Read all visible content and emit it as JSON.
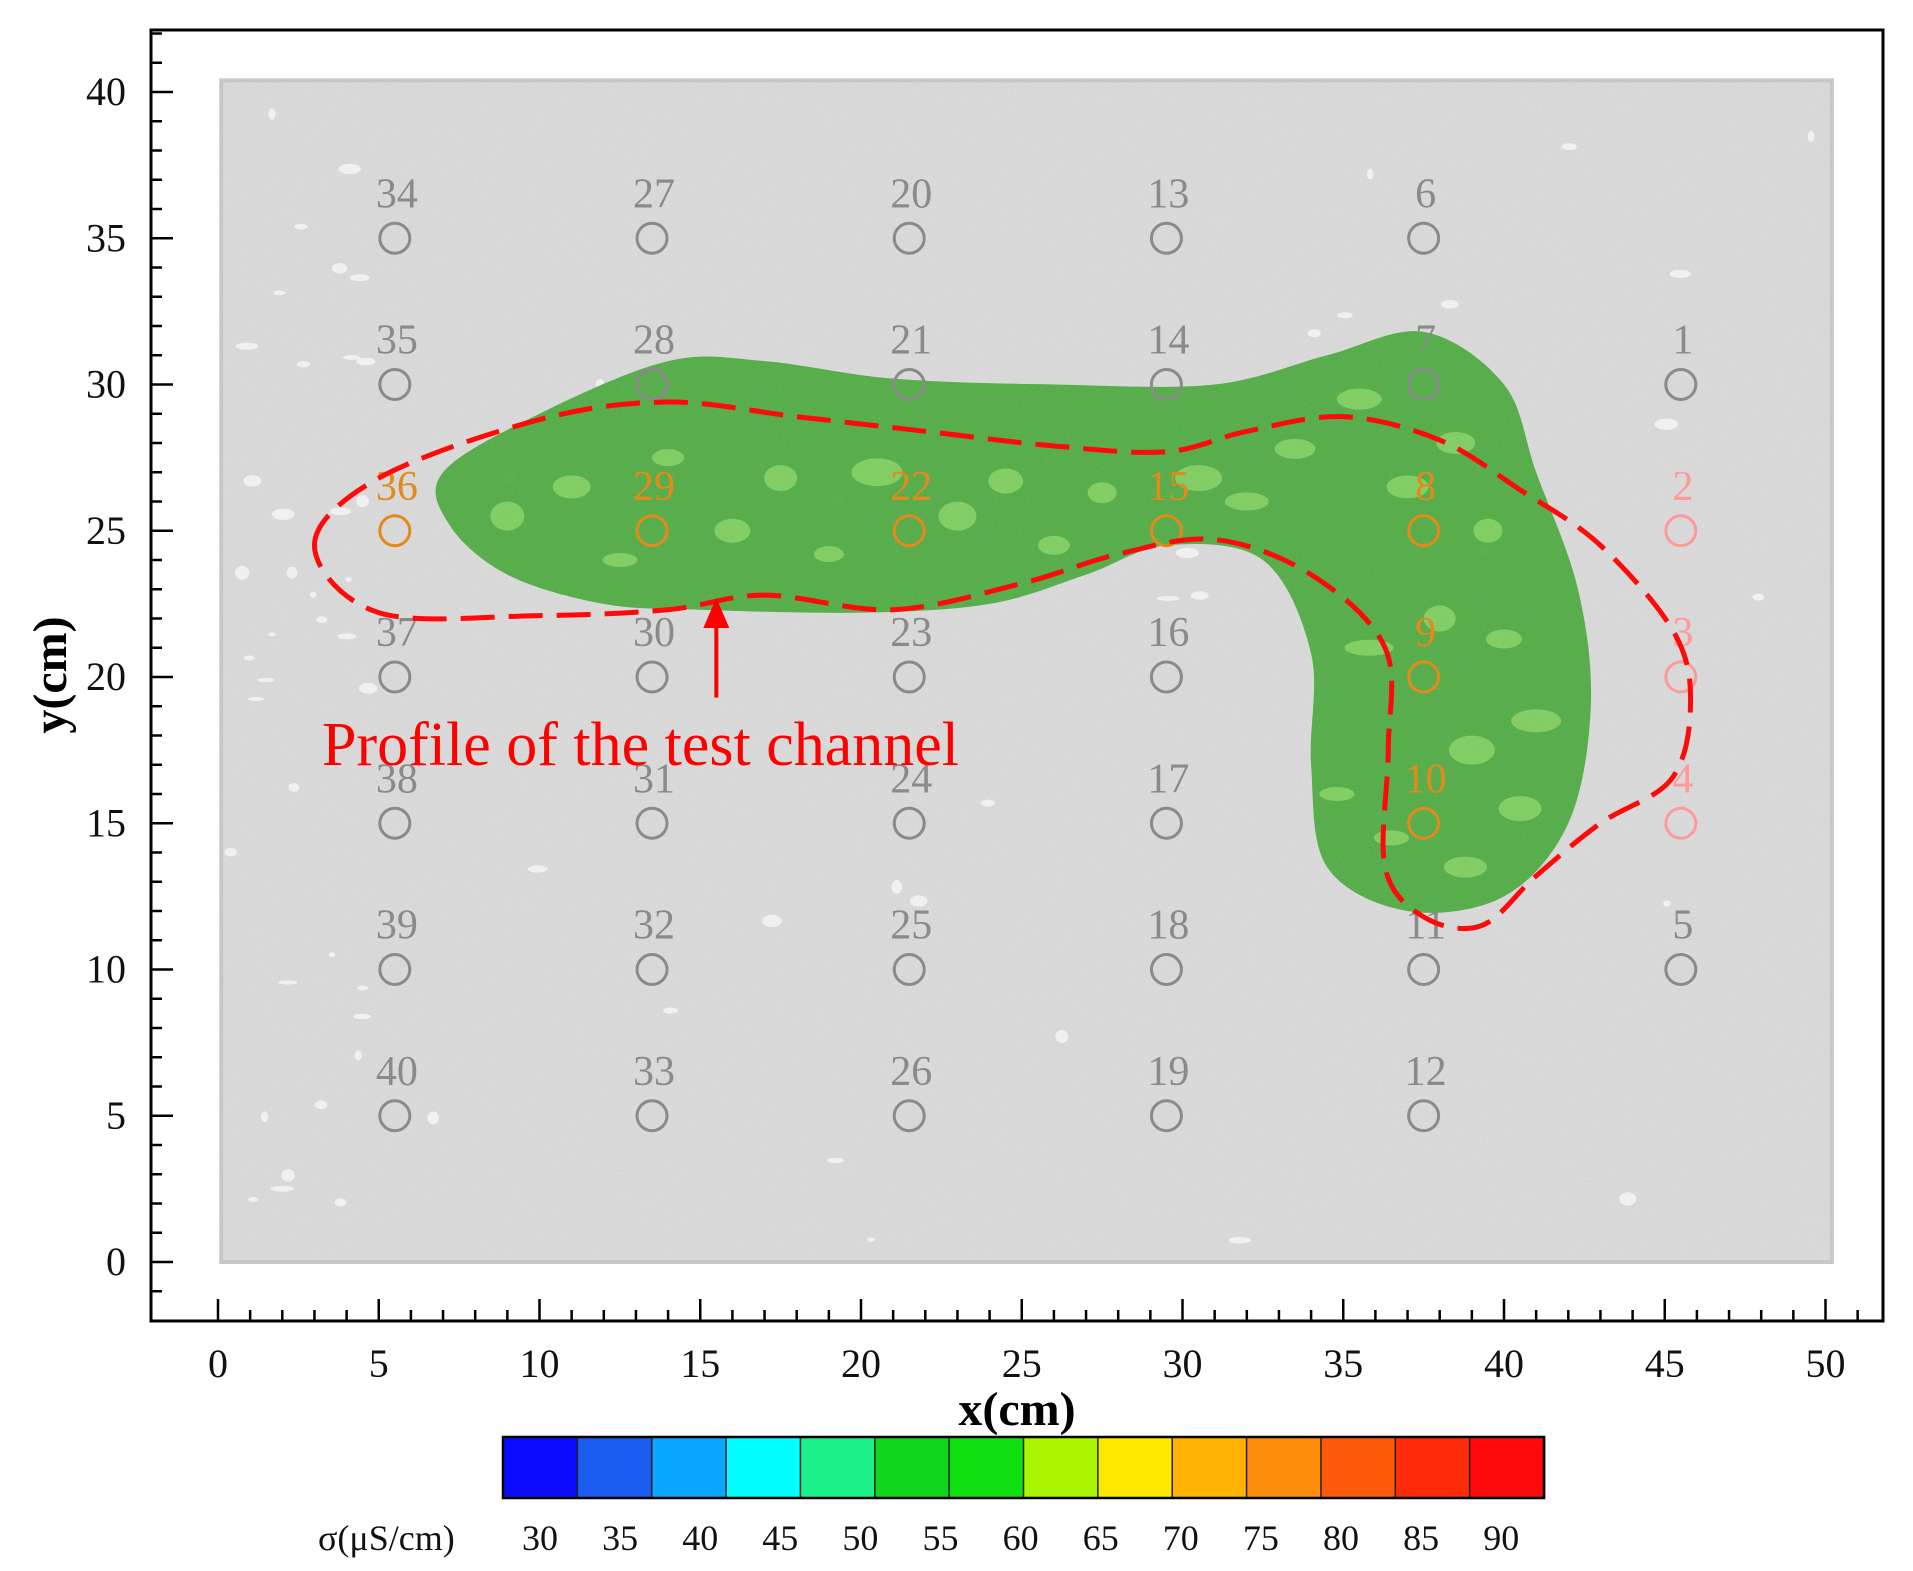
{
  "chart_data": {
    "type": "contour",
    "xlabel": "x(cm)",
    "ylabel": "y(cm)",
    "xlim": [
      0,
      50
    ],
    "ylim": [
      0,
      40
    ],
    "x_ticks": [
      "0",
      "5",
      "10",
      "15",
      "20",
      "25",
      "30",
      "35",
      "40",
      "45",
      "50"
    ],
    "y_ticks": [
      "0",
      "5",
      "10",
      "15",
      "20",
      "25",
      "30",
      "35",
      "40"
    ],
    "background": "photo of soil sample",
    "measurement_points": [
      {
        "id": "1",
        "x": 45.5,
        "y": 30
      },
      {
        "id": "2",
        "x": 45.5,
        "y": 25
      },
      {
        "id": "3",
        "x": 45.5,
        "y": 20
      },
      {
        "id": "4",
        "x": 45.5,
        "y": 15
      },
      {
        "id": "5",
        "x": 45.5,
        "y": 10
      },
      {
        "id": "6",
        "x": 37.5,
        "y": 35
      },
      {
        "id": "7",
        "x": 37.5,
        "y": 30
      },
      {
        "id": "8",
        "x": 37.5,
        "y": 25
      },
      {
        "id": "9",
        "x": 37.5,
        "y": 20
      },
      {
        "id": "10",
        "x": 37.5,
        "y": 15
      },
      {
        "id": "11",
        "x": 37.5,
        "y": 10
      },
      {
        "id": "12",
        "x": 37.5,
        "y": 5
      },
      {
        "id": "13",
        "x": 29.5,
        "y": 35
      },
      {
        "id": "14",
        "x": 29.5,
        "y": 30
      },
      {
        "id": "15",
        "x": 29.5,
        "y": 25
      },
      {
        "id": "16",
        "x": 29.5,
        "y": 20
      },
      {
        "id": "17",
        "x": 29.5,
        "y": 15
      },
      {
        "id": "18",
        "x": 29.5,
        "y": 10
      },
      {
        "id": "19",
        "x": 29.5,
        "y": 5
      },
      {
        "id": "20",
        "x": 21.5,
        "y": 35
      },
      {
        "id": "21",
        "x": 21.5,
        "y": 30
      },
      {
        "id": "22",
        "x": 21.5,
        "y": 25
      },
      {
        "id": "23",
        "x": 21.5,
        "y": 20
      },
      {
        "id": "24",
        "x": 21.5,
        "y": 15
      },
      {
        "id": "25",
        "x": 21.5,
        "y": 10
      },
      {
        "id": "26",
        "x": 21.5,
        "y": 5
      },
      {
        "id": "27",
        "x": 13.5,
        "y": 35
      },
      {
        "id": "28",
        "x": 13.5,
        "y": 30
      },
      {
        "id": "29",
        "x": 13.5,
        "y": 25
      },
      {
        "id": "30",
        "x": 13.5,
        "y": 20
      },
      {
        "id": "31",
        "x": 13.5,
        "y": 15
      },
      {
        "id": "32",
        "x": 13.5,
        "y": 10
      },
      {
        "id": "33",
        "x": 13.5,
        "y": 5
      },
      {
        "id": "34",
        "x": 5.5,
        "y": 35
      },
      {
        "id": "35",
        "x": 5.5,
        "y": 30
      },
      {
        "id": "36",
        "x": 5.5,
        "y": 25
      },
      {
        "id": "37",
        "x": 5.5,
        "y": 20
      },
      {
        "id": "38",
        "x": 5.5,
        "y": 15
      },
      {
        "id": "39",
        "x": 5.5,
        "y": 10
      },
      {
        "id": "40",
        "x": 5.5,
        "y": 5
      }
    ],
    "highlighted_points": [
      "2",
      "3",
      "4",
      "8",
      "9",
      "10",
      "15",
      "22",
      "29",
      "36"
    ],
    "conductivity_region": {
      "value_range_uS_cm": [
        50,
        65
      ],
      "color": "#3fa830",
      "outline": [
        [
          7,
          27
        ],
        [
          10,
          29
        ],
        [
          14,
          30.8
        ],
        [
          17,
          30.8
        ],
        [
          21,
          30.2
        ],
        [
          26,
          30
        ],
        [
          31,
          30
        ],
        [
          34.5,
          31
        ],
        [
          37.5,
          31.8
        ],
        [
          40,
          30
        ],
        [
          41,
          27
        ],
        [
          42.3,
          23
        ],
        [
          42.7,
          19
        ],
        [
          42,
          15
        ],
        [
          40,
          12.5
        ],
        [
          37,
          12
        ],
        [
          34.5,
          13.5
        ],
        [
          34,
          17
        ],
        [
          34,
          20.8
        ],
        [
          32.5,
          24
        ],
        [
          29.5,
          24.5
        ],
        [
          27,
          23.5
        ],
        [
          24,
          22.5
        ],
        [
          20,
          22.2
        ],
        [
          15,
          22.3
        ],
        [
          12,
          22.5
        ],
        [
          9,
          23.5
        ],
        [
          7.2,
          25.2
        ]
      ]
    },
    "annotation": {
      "text": "Profile of the test channel",
      "color": "#ff0000",
      "outline": [
        [
          3,
          24.5
        ],
        [
          5,
          26.8
        ],
        [
          10,
          28.8
        ],
        [
          14,
          29.4
        ],
        [
          18,
          28.9
        ],
        [
          22,
          28.4
        ],
        [
          26,
          27.9
        ],
        [
          29.5,
          27.7
        ],
        [
          32,
          28.4
        ],
        [
          35,
          28.9
        ],
        [
          38,
          28.1
        ],
        [
          40.5,
          26.4
        ],
        [
          43,
          24.5
        ],
        [
          45.3,
          21.5
        ],
        [
          45.8,
          19
        ],
        [
          45.2,
          16.5
        ],
        [
          43,
          15
        ],
        [
          41,
          13.2
        ],
        [
          39.3,
          11.5
        ],
        [
          37.5,
          11.8
        ],
        [
          36.3,
          13.5
        ],
        [
          36.4,
          17.5
        ],
        [
          36.3,
          21
        ],
        [
          34,
          23.5
        ],
        [
          31,
          24.7
        ],
        [
          28,
          24.2
        ],
        [
          25,
          23.2
        ],
        [
          21,
          22.3
        ],
        [
          17,
          22.8
        ],
        [
          14,
          22.3
        ],
        [
          10,
          22.1
        ],
        [
          5,
          22.2
        ]
      ],
      "arrow_from": [
        15.5,
        19.3
      ],
      "arrow_to": [
        15.5,
        22.7
      ]
    },
    "colorbar": {
      "label": "σ(μS/cm)",
      "ticks": [
        "30",
        "35",
        "40",
        "45",
        "50",
        "55",
        "60",
        "65",
        "70",
        "75",
        "80",
        "85",
        "90"
      ],
      "colors": [
        "#0a0aff",
        "#1a5cf0",
        "#0aa6ff",
        "#00ffff",
        "#1cf08a",
        "#0fd61a",
        "#11e010",
        "#aaf500",
        "#ffe800",
        "#ffb300",
        "#ff8c0a",
        "#ff5a0a",
        "#ff2a0a",
        "#ff0a0a"
      ]
    }
  }
}
